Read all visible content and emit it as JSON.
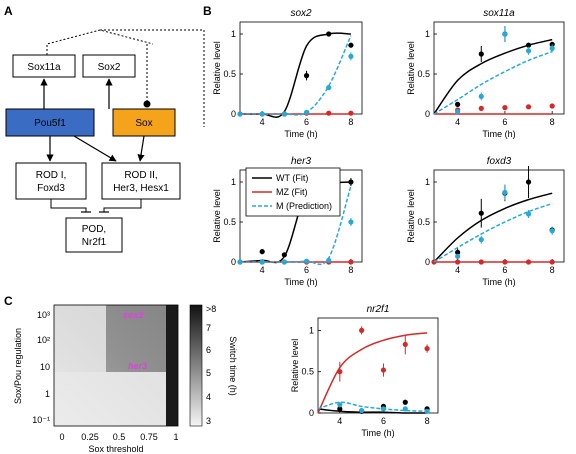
{
  "panels": {
    "A": "A",
    "B": "B",
    "C": "C"
  },
  "diagram": {
    "nodes": {
      "sox11a": "Sox11a",
      "sox2": "Sox2",
      "pou5f1": "Pou5f1",
      "sox": "Sox",
      "rod1_line1": "ROD I,",
      "rod1_line2": "Foxd3",
      "rod2_line1": "ROD II,",
      "rod2_line2": "Her3, Hesx1",
      "pod_line1": "POD,",
      "pod_line2": "Nr2f1"
    },
    "colors": {
      "pou5f1": "#3a6cc4",
      "sox": "#f5a31a"
    }
  },
  "colors": {
    "wt": "#000000",
    "mz": "#d62828",
    "m": "#27a9d6"
  },
  "legend": {
    "wt": "WT (Fit)",
    "mz": "MZ (Fit)",
    "m": "M (Prediction)"
  },
  "axis_labels": {
    "ylabel": "Relative level",
    "xlabel": "Time (h)"
  },
  "chart_data": [
    {
      "type": "line",
      "title": "sox2",
      "xlim": [
        3,
        8.5
      ],
      "ylim": [
        0,
        1.15
      ],
      "xticks": [
        4,
        6,
        8
      ],
      "yticks": [
        0,
        0.5,
        1
      ],
      "x": [
        3,
        4,
        5,
        6,
        7,
        8
      ],
      "series": [
        {
          "name": "WT (Fit)",
          "fit": [
            0,
            0,
            0.03,
            0.85,
            1.0,
            1.0
          ],
          "points": [
            null,
            null,
            null,
            0.48,
            1.0,
            0.86
          ],
          "err": [
            null,
            null,
            null,
            0.06,
            0.03,
            0.03
          ]
        },
        {
          "name": "MZ (Fit)",
          "fit": [
            0,
            0,
            0,
            0,
            0,
            0
          ],
          "points": [
            0,
            0,
            0,
            0.01,
            0.01,
            0.01
          ]
        },
        {
          "name": "M (Prediction)",
          "fit": [
            0,
            0,
            0,
            0.02,
            0.35,
            0.98
          ],
          "points": [
            0,
            0,
            0,
            0.02,
            0.33,
            0.72
          ],
          "err": [
            null,
            null,
            null,
            null,
            0.03,
            0.05
          ]
        }
      ]
    },
    {
      "type": "line",
      "title": "sox11a",
      "xlim": [
        3,
        8.5
      ],
      "ylim": [
        0,
        1.15
      ],
      "xticks": [
        4,
        6,
        8
      ],
      "yticks": [
        0,
        0.5,
        1
      ],
      "x": [
        3,
        4,
        5,
        6,
        7,
        8
      ],
      "series": [
        {
          "name": "WT (Fit)",
          "fit": [
            0,
            0.42,
            0.63,
            0.76,
            0.86,
            0.93
          ],
          "points": [
            null,
            0.12,
            0.75,
            1.0,
            0.86,
            0.87
          ],
          "err": [
            null,
            null,
            0.1,
            0.1,
            0.03,
            0.03
          ]
        },
        {
          "name": "MZ (Fit)",
          "fit": [
            0,
            0,
            0,
            0,
            0,
            0
          ],
          "points": [
            null,
            0.05,
            0.07,
            0.08,
            0.09,
            0.1
          ]
        },
        {
          "name": "M (Prediction)",
          "fit": [
            0,
            0.18,
            0.37,
            0.53,
            0.67,
            0.78
          ],
          "points": [
            null,
            0.03,
            0.22,
            1.0,
            0.79,
            0.82
          ],
          "err": [
            null,
            null,
            0.05,
            0.1,
            0.05,
            0.05
          ]
        }
      ]
    },
    {
      "type": "line",
      "title": "her3",
      "xlim": [
        3,
        8.5
      ],
      "ylim": [
        0,
        1.15
      ],
      "xticks": [
        4,
        6,
        8
      ],
      "yticks": [
        0,
        0.5,
        1
      ],
      "x": [
        3,
        4,
        5,
        6,
        7,
        8
      ],
      "series": [
        {
          "name": "WT (Fit)",
          "fit": [
            0,
            0.02,
            0.07,
            0.88,
            0.98,
            1.0
          ],
          "points": [
            null,
            0.13,
            0.09,
            0.84,
            0.95,
            1.0
          ],
          "err": [
            null,
            null,
            null,
            0.03,
            0.03,
            0.05
          ]
        },
        {
          "name": "MZ (Fit)",
          "fit": [
            0,
            0,
            0,
            0,
            0,
            0
          ],
          "points": [
            0,
            0,
            0,
            0,
            0,
            0
          ]
        },
        {
          "name": "M (Prediction)",
          "fit": [
            0,
            0,
            0,
            0.01,
            0.05,
            0.95
          ],
          "points": [
            0,
            0,
            0,
            0.01,
            0.02,
            0.5
          ],
          "err": [
            null,
            null,
            null,
            null,
            null,
            0.05
          ]
        }
      ]
    },
    {
      "type": "line",
      "title": "foxd3",
      "xlim": [
        3,
        8.5
      ],
      "ylim": [
        0,
        1.15
      ],
      "xticks": [
        4,
        6,
        8
      ],
      "yticks": [
        0,
        0.5,
        1
      ],
      "x": [
        3,
        4,
        5,
        6,
        7,
        8
      ],
      "series": [
        {
          "name": "WT (Fit)",
          "fit": [
            0,
            0.3,
            0.52,
            0.67,
            0.78,
            0.86
          ],
          "points": [
            null,
            0.12,
            0.61,
            0.86,
            1.0,
            0.4
          ],
          "err": [
            null,
            0.05,
            0.18,
            0.1,
            0.2,
            0.04
          ]
        },
        {
          "name": "MZ (Fit)",
          "fit": [
            0,
            0,
            0,
            0,
            0,
            0
          ],
          "points": [
            0,
            0,
            0,
            0,
            0,
            0
          ]
        },
        {
          "name": "M (Prediction)",
          "fit": [
            0,
            0.18,
            0.35,
            0.5,
            0.63,
            0.73
          ],
          "points": [
            null,
            0.07,
            0.28,
            0.87,
            0.6,
            0.39
          ],
          "err": [
            null,
            null,
            0.05,
            0.1,
            0.05,
            0.05
          ]
        }
      ]
    },
    {
      "type": "line",
      "title": "nr2f1",
      "xlim": [
        3,
        8.5
      ],
      "ylim": [
        0,
        1.15
      ],
      "xticks": [
        4,
        6,
        8
      ],
      "yticks": [
        0,
        0.5,
        1
      ],
      "x": [
        3,
        4,
        5,
        6,
        7,
        8
      ],
      "series": [
        {
          "name": "WT (Fit)",
          "fit": [
            0.05,
            0.02,
            0.01,
            0.01,
            0.0,
            0.0
          ],
          "points": [
            null,
            0.05,
            0.02,
            0.08,
            0.13,
            0.05
          ]
        },
        {
          "name": "MZ (Fit)",
          "fit": [
            0,
            0.55,
            0.77,
            0.88,
            0.94,
            0.97
          ],
          "points": [
            null,
            0.5,
            1.0,
            0.52,
            0.83,
            0.78
          ],
          "err": [
            null,
            0.12,
            0.05,
            0.08,
            0.12,
            0.05
          ]
        },
        {
          "name": "M (Prediction)",
          "fit": [
            0.05,
            0.13,
            0.08,
            0.05,
            0.03,
            0.02
          ],
          "points": [
            null,
            0.1,
            0.03,
            0.05,
            0.05,
            0.02
          ]
        }
      ]
    },
    {
      "type": "heatmap",
      "xlabel": "Sox threshold",
      "ylabel": "Sox/Pou regulation",
      "xticks": [
        "0",
        "0.25",
        "0.5",
        "0.75",
        "1"
      ],
      "yticks": [
        "10⁻¹",
        "1",
        "10",
        "10²",
        "10³"
      ],
      "colorbar_label": "Switch time  (h)",
      "colorbar_ticks": [
        "3",
        "4",
        "5",
        "6",
        "7",
        ">8"
      ],
      "annotations": [
        "sox2",
        "her3"
      ]
    }
  ]
}
